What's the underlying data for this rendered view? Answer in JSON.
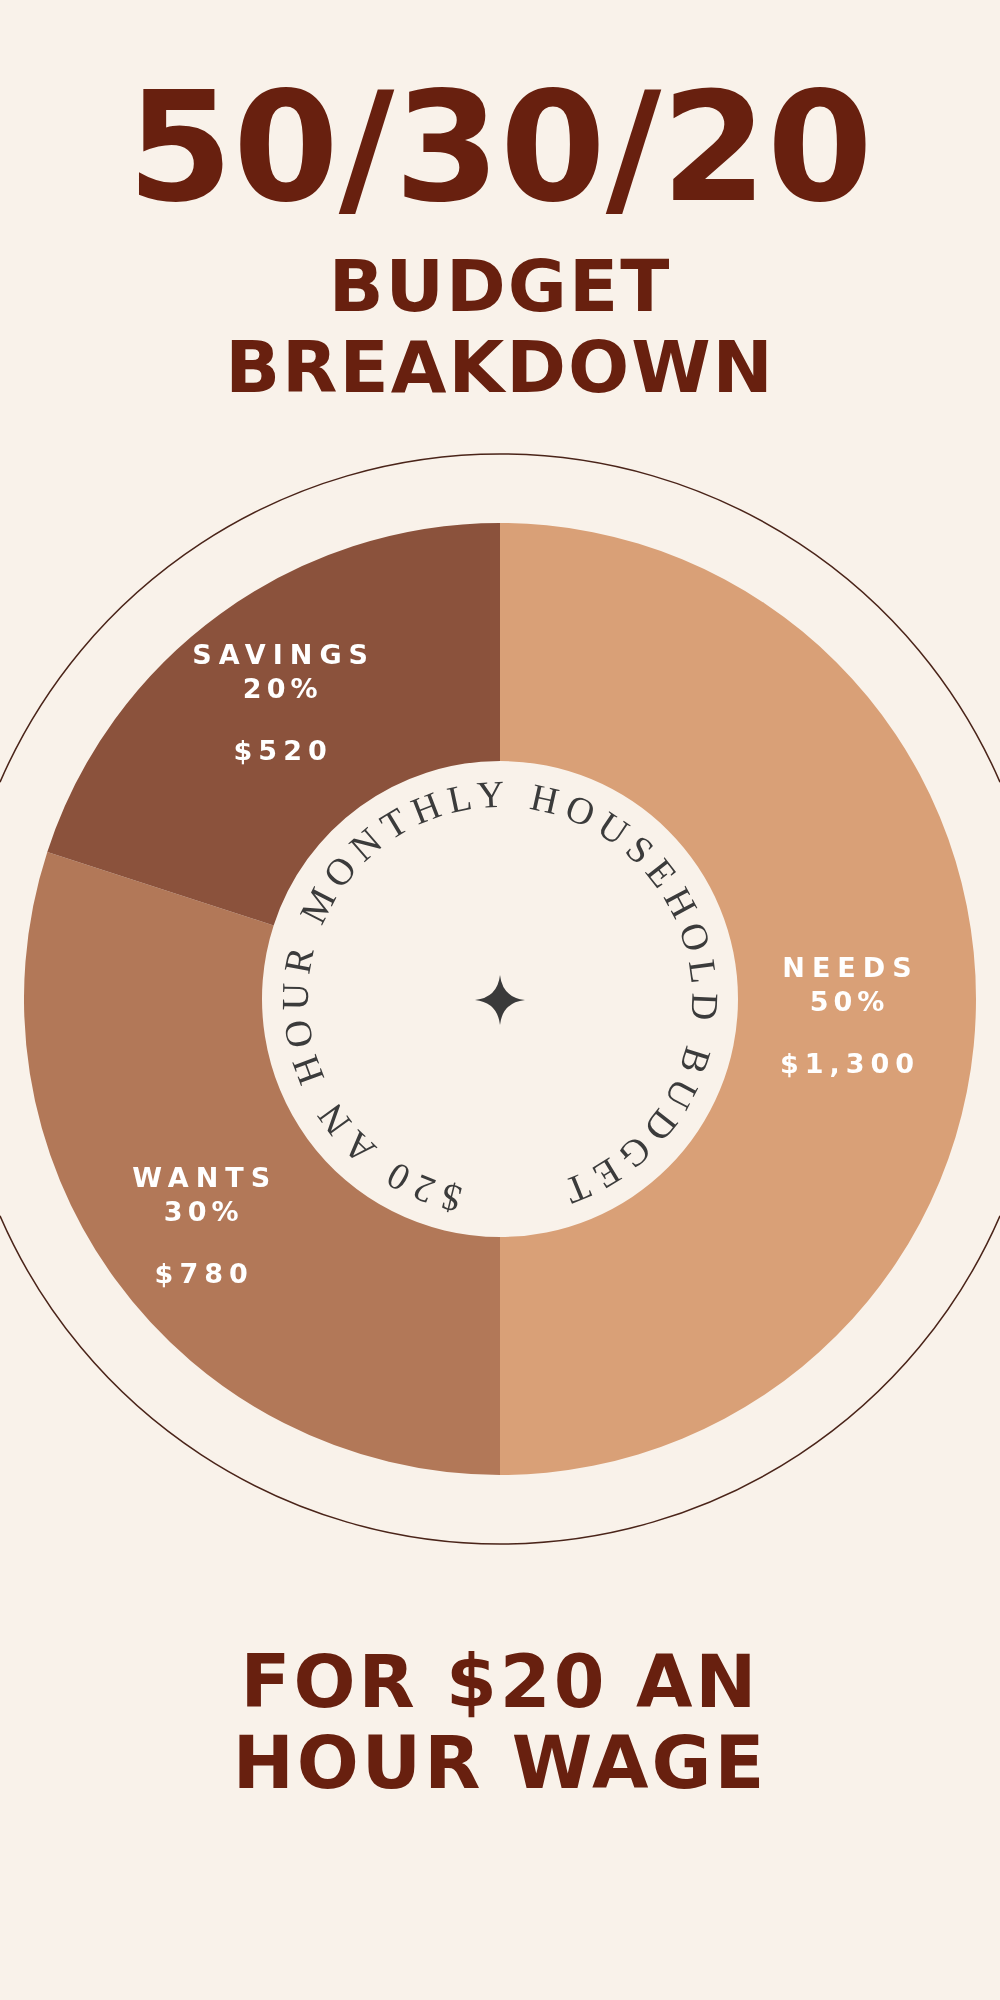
{
  "chart_data": {
    "type": "donut",
    "title": "50/30/20",
    "subtitle": "BUDGET BREAKDOWN",
    "categories": [
      "NEEDS",
      "WANTS",
      "SAVINGS"
    ],
    "values": [
      1300,
      780,
      520
    ],
    "colors": [
      "#d9a077",
      "#b27858",
      "#8b523c"
    ],
    "value_labels": [
      "$1,300",
      "$780",
      "$520"
    ],
    "annotations": [
      "$20 AN HOUR MONTHLY HOUSEHOLD BUDGET",
      "FOR $20 AN HOUR WAGE",
      {
        "text": "50%",
        "x": "NEEDS"
      },
      {
        "text": "30%",
        "x": "WANTS"
      },
      {
        "text": "20%",
        "x": "SAVINGS"
      }
    ],
    "legend": false
  }
}
